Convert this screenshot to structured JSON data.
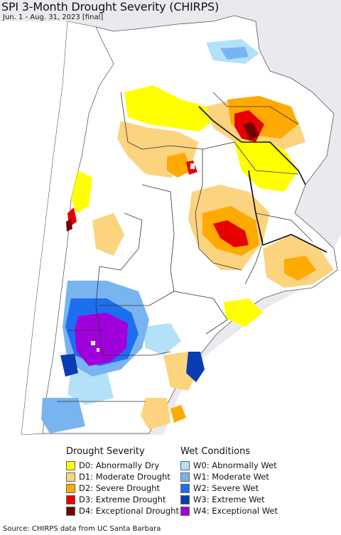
{
  "title": "SPI 3-Month Drought Severity (CHIRPS)",
  "subtitle": "Jun. 1 - Aug. 31, 2023 [final]",
  "source": "Source: CHIRPS data from UC Santa Barbara",
  "colors": {
    "ocean": "#ffffff",
    "land_outside": "#ece9ee",
    "land_inside": "#ffffff",
    "border": "#333333"
  },
  "legend": {
    "drought": {
      "title": "Drought Severity",
      "items": [
        {
          "label": "D0: Abnormally Dry",
          "color": "#ffff00"
        },
        {
          "label": "D1: Moderate Drought",
          "color": "#fcd37f"
        },
        {
          "label": "D2: Severe Drought",
          "color": "#ffaa00"
        },
        {
          "label": "D3: Extreme Drought",
          "color": "#e60000"
        },
        {
          "label": "D4: Exceptional Drought",
          "color": "#730000"
        }
      ]
    },
    "wet": {
      "title": "Wet Conditions",
      "items": [
        {
          "label": "W0: Abnormally Wet",
          "color": "#b4e1fa"
        },
        {
          "label": "W1: Moderate Wet",
          "color": "#78b4f0"
        },
        {
          "label": "W2: Severe Wet",
          "color": "#1e6ef0"
        },
        {
          "label": "W3: Extreme Wet",
          "color": "#0a3cb4"
        },
        {
          "label": "W4: Exceptional Wet",
          "color": "#a000dc"
        }
      ]
    }
  }
}
